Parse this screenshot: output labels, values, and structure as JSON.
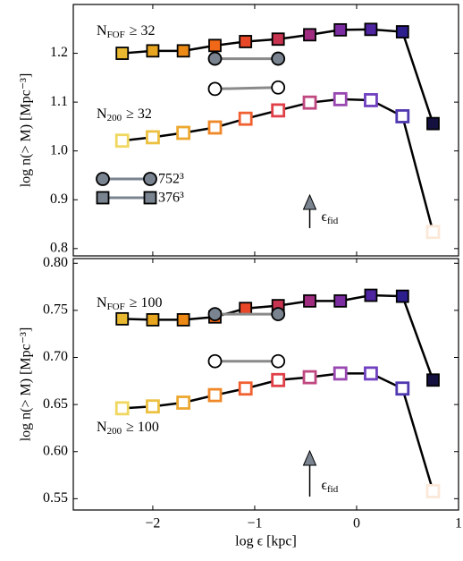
{
  "chart_data": [
    {
      "type": "line",
      "ylabel": "log n(> M) [Mpc⁻³]",
      "xlim": [
        -2.78,
        1.0
      ],
      "xticks": [
        -2,
        -1,
        0,
        1
      ],
      "show_xtick_labels": false,
      "ylim": [
        0.785,
        1.3
      ],
      "yticks": [
        {
          "value": 0.8,
          "label": "0.8"
        },
        0.9,
        {
          "value": 1.0,
          "label": "1.0"
        },
        1.1,
        1.2
      ],
      "series": [
        {
          "label": [
            "N",
            "FOF",
            "≥ 32"
          ],
          "marker": "square",
          "filled": true,
          "line_color": "#000000",
          "colors": [
            "#e8b830",
            "#e8a520",
            "#ec8a15",
            "#f06818",
            "#e84828",
            "#c83450",
            "#a02c80",
            "#7a2ca0",
            "#4e24a0",
            "#2c1e8c",
            "#141040"
          ],
          "x": [
            -2.3,
            -2.0,
            -1.7,
            -1.39,
            -1.09,
            -0.77,
            -0.46,
            -0.16,
            0.14,
            0.45,
            0.75
          ],
          "values": [
            1.2,
            1.205,
            1.205,
            1.216,
            1.224,
            1.229,
            1.238,
            1.248,
            1.249,
            1.244,
            1.056
          ]
        },
        {
          "label": [
            "N",
            "200",
            "≥ 32"
          ],
          "marker": "square",
          "filled": false,
          "line_color": "#000000",
          "colors": [
            "#f0d860",
            "#ecc040",
            "#eca830",
            "#f08828",
            "#f06030",
            "#e04048",
            "#c04880",
            "#9848b0",
            "#7040c0",
            "#5038b0",
            "#fbe8d8"
          ],
          "x": [
            -2.3,
            -2.0,
            -1.7,
            -1.39,
            -1.09,
            -0.77,
            -0.46,
            -0.16,
            0.14,
            0.45,
            0.75
          ],
          "values": [
            1.021,
            1.028,
            1.037,
            1.048,
            1.066,
            1.083,
            1.099,
            1.106,
            1.104,
            1.071,
            0.834
          ]
        },
        {
          "marker": "circle",
          "filled": true,
          "line_color": "#8a8a8a",
          "color": "#7a8490",
          "x": [
            -1.39,
            -0.77
          ],
          "values": [
            1.189,
            1.189
          ]
        },
        {
          "marker": "circle",
          "filled": false,
          "line_color": "#8a8a8a",
          "color": "#000000",
          "x": [
            -1.39,
            -0.77
          ],
          "values": [
            1.127,
            1.13
          ]
        }
      ],
      "legend": [
        {
          "label": "752³",
          "marker": "circle"
        },
        {
          "label": "376³",
          "marker": "square"
        }
      ],
      "annotation": {
        "parts": [
          "ϵ",
          "fid"
        ],
        "x": -0.46
      }
    },
    {
      "type": "line",
      "ylabel": "log n(> M) [Mpc⁻³]",
      "xlabel": "log ϵ [kpc]",
      "xlim": [
        -2.78,
        1.0
      ],
      "xticks": [
        {
          "value": -2,
          "label": "−2"
        },
        {
          "value": -1,
          "label": "−1"
        },
        0,
        1
      ],
      "show_xtick_labels": true,
      "ylim": [
        0.538,
        0.805
      ],
      "yticks": [
        0.55,
        {
          "value": 0.6,
          "label": "0.60"
        },
        0.65,
        {
          "value": 0.7,
          "label": "0.70"
        },
        0.75,
        {
          "value": 0.8,
          "label": "0.80"
        }
      ],
      "series": [
        {
          "label": [
            "N",
            "FOF",
            "≥ 100"
          ],
          "marker": "square",
          "filled": true,
          "line_color": "#000000",
          "colors": [
            "#e8b830",
            "#e8a520",
            "#ec8a15",
            "#f06818",
            "#e84828",
            "#c83450",
            "#a02c80",
            "#7a2ca0",
            "#4e24a0",
            "#2c1e8c",
            "#141040"
          ],
          "x": [
            -2.3,
            -2.0,
            -1.7,
            -1.39,
            -1.09,
            -0.77,
            -0.46,
            -0.16,
            0.14,
            0.45,
            0.75
          ],
          "values": [
            0.741,
            0.74,
            0.74,
            0.743,
            0.752,
            0.755,
            0.76,
            0.76,
            0.766,
            0.765,
            0.676
          ]
        },
        {
          "label": [
            "N",
            "200",
            "≥ 100"
          ],
          "marker": "square",
          "filled": false,
          "line_color": "#000000",
          "colors": [
            "#f0d860",
            "#ecc040",
            "#eca830",
            "#f08828",
            "#f06030",
            "#e04048",
            "#c04880",
            "#9848b0",
            "#7040c0",
            "#5038b0",
            "#fbe8d8"
          ],
          "x": [
            -2.3,
            -2.0,
            -1.7,
            -1.39,
            -1.09,
            -0.77,
            -0.46,
            -0.16,
            0.14,
            0.45,
            0.75
          ],
          "values": [
            0.646,
            0.648,
            0.652,
            0.66,
            0.667,
            0.676,
            0.679,
            0.683,
            0.683,
            0.667,
            0.558
          ]
        },
        {
          "marker": "circle",
          "filled": true,
          "line_color": "#8a8a8a",
          "color": "#7a8490",
          "x": [
            -1.39,
            -0.77
          ],
          "values": [
            0.746,
            0.746
          ]
        },
        {
          "marker": "circle",
          "filled": false,
          "line_color": "#8a8a8a",
          "color": "#000000",
          "x": [
            -1.39,
            -0.77
          ],
          "values": [
            0.696,
            0.696
          ]
        }
      ],
      "annotation": {
        "parts": [
          "ϵ",
          "fid"
        ],
        "x": -0.46
      }
    }
  ]
}
